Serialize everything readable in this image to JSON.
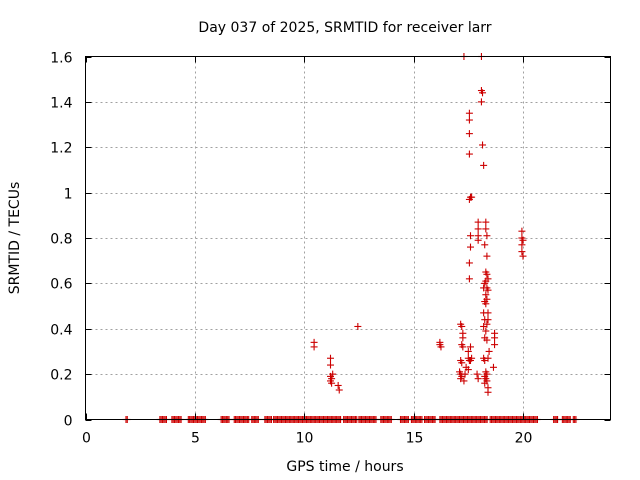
{
  "chart_data": {
    "type": "scatter",
    "title": "Day 037 of 2025, SRMTID for receiver larr",
    "xlabel": "GPS time / hours",
    "ylabel": "SRMTID / TECUs",
    "xlim": [
      0,
      24
    ],
    "ylim": [
      0,
      1.6
    ],
    "x_ticks": [
      0,
      5,
      10,
      15,
      20
    ],
    "x_tick_labels": [
      "0",
      "5",
      "10",
      "15",
      "20"
    ],
    "y_ticks": [
      0,
      0.2,
      0.4,
      0.6,
      0.8,
      1.0,
      1.2,
      1.4,
      1.6
    ],
    "y_tick_labels": [
      "0",
      "0.2",
      "0.4",
      "0.6",
      "0.8",
      "1",
      "1.2",
      "1.4",
      "1.6"
    ],
    "grid": true,
    "marker": "+",
    "marker_color": "#cc0000",
    "zero_ranges": [
      [
        1.85,
        1.95
      ],
      [
        3.4,
        3.7
      ],
      [
        3.95,
        4.4
      ],
      [
        4.7,
        4.95
      ],
      [
        5.0,
        5.5
      ],
      [
        6.2,
        6.6
      ],
      [
        6.8,
        7.5
      ],
      [
        7.6,
        7.9
      ],
      [
        8.2,
        8.5
      ],
      [
        8.6,
        11.7
      ],
      [
        11.8,
        12.4
      ],
      [
        12.5,
        13.3
      ],
      [
        13.5,
        14.0
      ],
      [
        14.4,
        14.8
      ],
      [
        14.9,
        15.4
      ],
      [
        15.5,
        16.0
      ],
      [
        16.2,
        18.4
      ],
      [
        18.5,
        20.7
      ],
      [
        21.4,
        21.6
      ],
      [
        21.8,
        22.2
      ],
      [
        22.3,
        22.45
      ]
    ],
    "series": [
      {
        "name": "SRMTID",
        "points": [
          [
            10.45,
            0.34
          ],
          [
            10.45,
            0.32
          ],
          [
            11.2,
            0.27
          ],
          [
            11.2,
            0.24
          ],
          [
            11.2,
            0.19
          ],
          [
            11.2,
            0.17
          ],
          [
            11.25,
            0.16
          ],
          [
            11.25,
            0.18
          ],
          [
            11.3,
            0.2
          ],
          [
            11.55,
            0.15
          ],
          [
            11.6,
            0.13
          ],
          [
            12.45,
            0.41
          ],
          [
            16.2,
            0.34
          ],
          [
            16.2,
            0.33
          ],
          [
            16.25,
            0.32
          ],
          [
            17.15,
            0.42
          ],
          [
            17.2,
            0.41
          ],
          [
            17.25,
            0.38
          ],
          [
            17.25,
            0.36
          ],
          [
            17.2,
            0.33
          ],
          [
            17.25,
            0.32
          ],
          [
            17.15,
            0.26
          ],
          [
            17.2,
            0.25
          ],
          [
            17.1,
            0.21
          ],
          [
            17.15,
            0.2
          ],
          [
            17.2,
            0.19
          ],
          [
            17.15,
            0.18
          ],
          [
            17.3,
            0.17
          ],
          [
            17.35,
            0.2
          ],
          [
            17.4,
            0.23
          ],
          [
            17.3,
            1.6
          ],
          [
            17.55,
            1.35
          ],
          [
            17.55,
            1.32
          ],
          [
            17.55,
            1.26
          ],
          [
            17.55,
            1.17
          ],
          [
            17.6,
            0.98
          ],
          [
            17.65,
            0.98
          ],
          [
            17.55,
            0.97
          ],
          [
            17.6,
            0.81
          ],
          [
            17.6,
            0.76
          ],
          [
            17.55,
            0.69
          ],
          [
            17.55,
            0.62
          ],
          [
            17.5,
            0.3
          ],
          [
            17.6,
            0.32
          ],
          [
            17.5,
            0.27
          ],
          [
            17.55,
            0.26
          ],
          [
            17.6,
            0.26
          ],
          [
            17.65,
            0.27
          ],
          [
            17.5,
            0.22
          ],
          [
            17.95,
            0.87
          ],
          [
            17.95,
            0.84
          ],
          [
            17.95,
            0.81
          ],
          [
            17.95,
            0.79
          ],
          [
            17.9,
            0.2
          ],
          [
            17.95,
            0.18
          ],
          [
            18.1,
            1.6
          ],
          [
            18.1,
            1.45
          ],
          [
            18.15,
            1.44
          ],
          [
            18.1,
            1.4
          ],
          [
            18.15,
            1.21
          ],
          [
            18.2,
            1.12
          ],
          [
            18.3,
            0.87
          ],
          [
            18.3,
            0.84
          ],
          [
            18.35,
            0.81
          ],
          [
            18.25,
            0.77
          ],
          [
            18.35,
            0.72
          ],
          [
            18.3,
            0.65
          ],
          [
            18.35,
            0.64
          ],
          [
            18.4,
            0.62
          ],
          [
            18.3,
            0.61
          ],
          [
            18.25,
            0.6
          ],
          [
            18.2,
            0.58
          ],
          [
            18.35,
            0.58
          ],
          [
            18.4,
            0.57
          ],
          [
            18.3,
            0.55
          ],
          [
            18.35,
            0.53
          ],
          [
            18.25,
            0.52
          ],
          [
            18.3,
            0.51
          ],
          [
            18.4,
            0.47
          ],
          [
            18.2,
            0.47
          ],
          [
            18.25,
            0.44
          ],
          [
            18.4,
            0.44
          ],
          [
            18.35,
            0.42
          ],
          [
            18.2,
            0.41
          ],
          [
            18.3,
            0.39
          ],
          [
            18.25,
            0.36
          ],
          [
            18.35,
            0.35
          ],
          [
            18.45,
            0.3
          ],
          [
            18.4,
            0.27
          ],
          [
            18.2,
            0.27
          ],
          [
            18.25,
            0.26
          ],
          [
            18.3,
            0.21
          ],
          [
            18.35,
            0.2
          ],
          [
            18.25,
            0.19
          ],
          [
            18.3,
            0.18
          ],
          [
            18.35,
            0.17
          ],
          [
            18.25,
            0.16
          ],
          [
            18.4,
            0.14
          ],
          [
            18.4,
            0.12
          ],
          [
            18.7,
            0.38
          ],
          [
            18.7,
            0.36
          ],
          [
            18.7,
            0.33
          ],
          [
            18.65,
            0.23
          ],
          [
            19.95,
            0.83
          ],
          [
            19.95,
            0.8
          ],
          [
            20.0,
            0.79
          ],
          [
            19.95,
            0.77
          ],
          [
            19.95,
            0.74
          ],
          [
            20.0,
            0.72
          ]
        ]
      }
    ]
  }
}
